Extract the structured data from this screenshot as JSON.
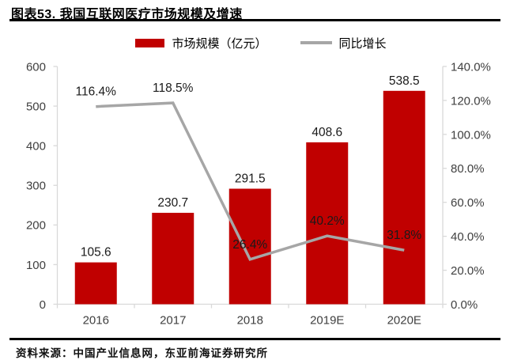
{
  "title": "图表53. 我国互联网医疗市场规模及增速",
  "source": "资料来源：中国产业信息网，东亚前海证券研究所",
  "legend": [
    {
      "label": "市场规模（亿元）",
      "marker": "bar-swatch",
      "color": "#c00000"
    },
    {
      "label": "同比增长",
      "marker": "line-swatch",
      "color": "#a6a6a6"
    }
  ],
  "colors": {
    "bar": "#c00000",
    "line": "#a6a6a6",
    "axis": "#d9d9d9",
    "tick_text": "#404040",
    "data_label": "#1a1a1a"
  },
  "chart_data": {
    "type": "bar",
    "title": "我国互联网医疗市场规模及增速",
    "categories": [
      "2016",
      "2017",
      "2018",
      "2019E",
      "2020E"
    ],
    "series": [
      {
        "name": "市场规模（亿元）",
        "type": "bar",
        "axis": "left",
        "color": "#c00000",
        "values": [
          105.6,
          230.7,
          291.5,
          408.6,
          538.5
        ],
        "labels": [
          "105.6",
          "230.7",
          "291.5",
          "408.6",
          "538.5"
        ]
      },
      {
        "name": "同比增长",
        "type": "line",
        "axis": "right",
        "color": "#a6a6a6",
        "values": [
          116.4,
          118.5,
          26.4,
          40.2,
          31.8
        ],
        "labels": [
          "116.4%",
          "118.5%",
          "26.4%",
          "40.2%",
          "31.8%"
        ]
      }
    ],
    "left_axis": {
      "min": 0,
      "max": 600,
      "step": 100,
      "ticks": [
        "600",
        "500",
        "400",
        "300",
        "200",
        "100",
        "0"
      ]
    },
    "right_axis": {
      "min": 0,
      "max": 140,
      "step": 20,
      "ticks": [
        "140.0%",
        "120.0%",
        "100.0%",
        "80.0%",
        "60.0%",
        "40.0%",
        "20.0%",
        "0.0%"
      ]
    },
    "grid": false,
    "legend_position": "top"
  }
}
